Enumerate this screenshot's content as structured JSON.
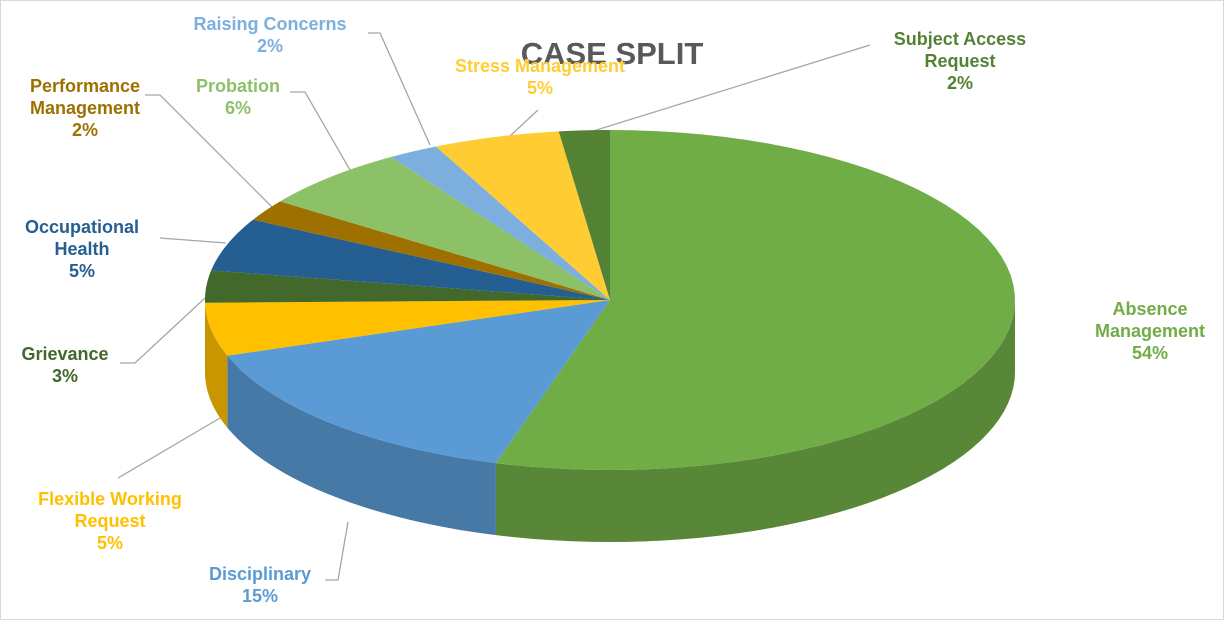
{
  "chart_data": {
    "type": "pie3d",
    "title": "CASE SPLIT",
    "categories": [
      "Absence Management",
      "Disciplinary",
      "Flexible Working Request",
      "Grievance",
      "Occupational Health",
      "Performance Management",
      "Probation",
      "Raising Concerns",
      "Stress Management",
      "Subject Access Request"
    ],
    "values": [
      54,
      15,
      5,
      3,
      5,
      2,
      6,
      2,
      5,
      2
    ],
    "value_labels": [
      "54%",
      "15%",
      "5%",
      "3%",
      "5%",
      "2%",
      "6%",
      "2%",
      "5%",
      "2%"
    ],
    "colors": [
      "#70ad47",
      "#5b9bd5",
      "#ffc000",
      "#43682b",
      "#255e91",
      "#9e7000",
      "#8cc168",
      "#7cafdd",
      "#ffcd33",
      "#548235"
    ]
  }
}
